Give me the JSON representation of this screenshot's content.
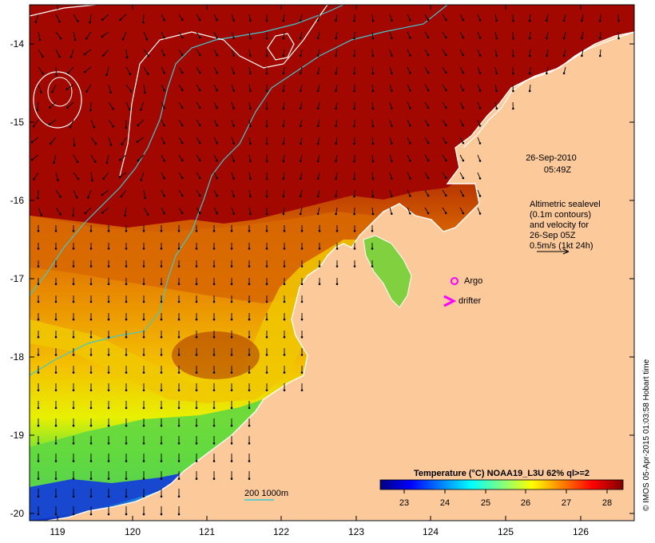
{
  "map": {
    "lon_ticks": [
      "119",
      "120",
      "121",
      "122",
      "123",
      "124",
      "125",
      "126"
    ],
    "lat_ticks": [
      "-14",
      "-15",
      "-16",
      "-17",
      "-18",
      "-19",
      "-20"
    ],
    "lon_range": [
      118.65,
      126.65
    ],
    "lat_range": [
      -20.05,
      -13.55
    ],
    "land_color": "#fbc99a",
    "coast_color": "#ffffff"
  },
  "timestamp": {
    "date": "26-Sep-2010",
    "time": "05:49Z"
  },
  "altimetry_note": {
    "lines": [
      "Altimetric sealevel",
      "(0.1m contours)",
      "and velocity for",
      "26-Sep 05Z",
      "0.5m/s (1kt 24h)"
    ]
  },
  "markers": {
    "argo_label": "Argo",
    "argo_color": "#ff00ff",
    "drifter_label": "drifter",
    "drifter_color": "#ff00ff"
  },
  "isobath_legend": {
    "label": "200  1000m",
    "color": "#40c8d0"
  },
  "colorbar": {
    "title": "Temperature (°C) NOAA19_L3U 62% ql>=2",
    "ticks": [
      "23",
      "24",
      "25",
      "26",
      "27",
      "28"
    ],
    "range": [
      22.3,
      28.5
    ],
    "colors": [
      "#00007f",
      "#0000ff",
      "#0080ff",
      "#00ffff",
      "#80ff80",
      "#ffff00",
      "#ff8000",
      "#ff0000",
      "#7f0000"
    ]
  },
  "credit": "© IMOS 05-Apr-2015 01:03:58 Hobart time"
}
